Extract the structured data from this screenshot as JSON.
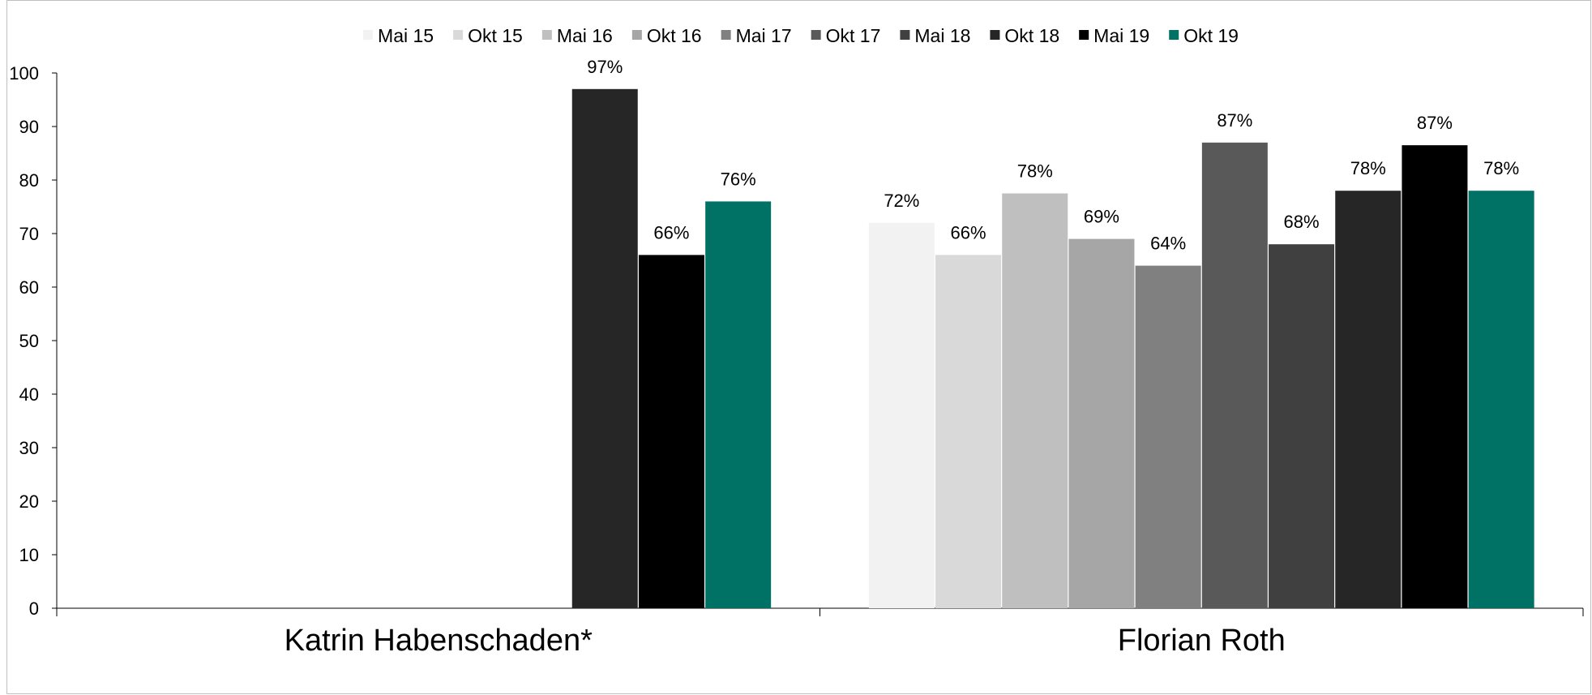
{
  "chart_data": {
    "type": "bar",
    "categories": [
      "Katrin Habenschaden*",
      "Florian Roth"
    ],
    "ylim": [
      0,
      100
    ],
    "yticks": [
      0,
      10,
      20,
      30,
      40,
      50,
      60,
      70,
      80,
      90,
      100
    ],
    "legend_position": "top",
    "grid": false,
    "series": [
      {
        "name": "Mai 15",
        "color": "#f2f2f2",
        "values": [
          null,
          72
        ],
        "labels": [
          null,
          "72%"
        ]
      },
      {
        "name": "Okt 15",
        "color": "#d9d9d9",
        "values": [
          null,
          66
        ],
        "labels": [
          null,
          "66%"
        ]
      },
      {
        "name": "Mai 16",
        "color": "#bfbfbf",
        "values": [
          null,
          77.5
        ],
        "labels": [
          null,
          "78%"
        ]
      },
      {
        "name": "Okt 16",
        "color": "#a6a6a6",
        "values": [
          null,
          69
        ],
        "labels": [
          null,
          "69%"
        ]
      },
      {
        "name": "Mai 17",
        "color": "#808080",
        "values": [
          null,
          64
        ],
        "labels": [
          null,
          "64%"
        ]
      },
      {
        "name": "Okt 17",
        "color": "#595959",
        "values": [
          null,
          87
        ],
        "labels": [
          null,
          "87%"
        ]
      },
      {
        "name": "Mai 18",
        "color": "#404040",
        "values": [
          null,
          68
        ],
        "labels": [
          null,
          "68%"
        ]
      },
      {
        "name": "Okt 18",
        "color": "#262626",
        "values": [
          97,
          78
        ],
        "labels": [
          "97%",
          "78%"
        ]
      },
      {
        "name": "Mai 19",
        "color": "#000000",
        "values": [
          66,
          86.5
        ],
        "labels": [
          "66%",
          "87%"
        ]
      },
      {
        "name": "Okt 19",
        "color": "#007265",
        "values": [
          76,
          78
        ],
        "labels": [
          "76%",
          "78%"
        ]
      }
    ]
  }
}
